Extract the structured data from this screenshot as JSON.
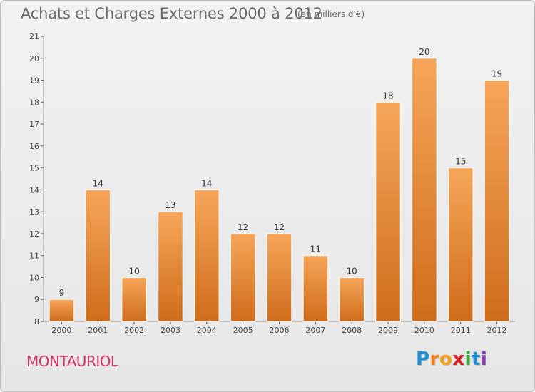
{
  "header": {
    "title": "Achats et Charges Externes 2000 à 2012",
    "subtitle": "(en milliers d'€)"
  },
  "footer": {
    "commune": "MONTAURIOL",
    "logo_letters": [
      "P",
      "r",
      "o",
      "x",
      "i",
      "t",
      "i"
    ],
    "logo_colors": [
      "#1f8fd6",
      "#f07a1a",
      "#f0a01a",
      "#d62020",
      "#39a83a",
      "#1f8fd6",
      "#8a3fb0"
    ]
  },
  "colors": {
    "bar_light": "#f6a65a",
    "bar_dark": "#cf6d1a",
    "axis": "#999999",
    "grid_tick": "#666666"
  },
  "chart_data": {
    "type": "bar",
    "title": "Achats et Charges Externes 2000 à 2012",
    "subtitle": "(en milliers d'€)",
    "categories": [
      "2000",
      "2001",
      "2002",
      "2003",
      "2004",
      "2005",
      "2006",
      "2007",
      "2008",
      "2009",
      "2010",
      "2011",
      "2012"
    ],
    "values": [
      9,
      14,
      10,
      13,
      14,
      12,
      12,
      11,
      10,
      18,
      20,
      15,
      19
    ],
    "ylim": [
      8,
      21
    ],
    "yticks": [
      8,
      9,
      10,
      11,
      12,
      13,
      14,
      15,
      16,
      17,
      18,
      19,
      20,
      21
    ],
    "xlabel": "",
    "ylabel": "",
    "grid": false
  }
}
